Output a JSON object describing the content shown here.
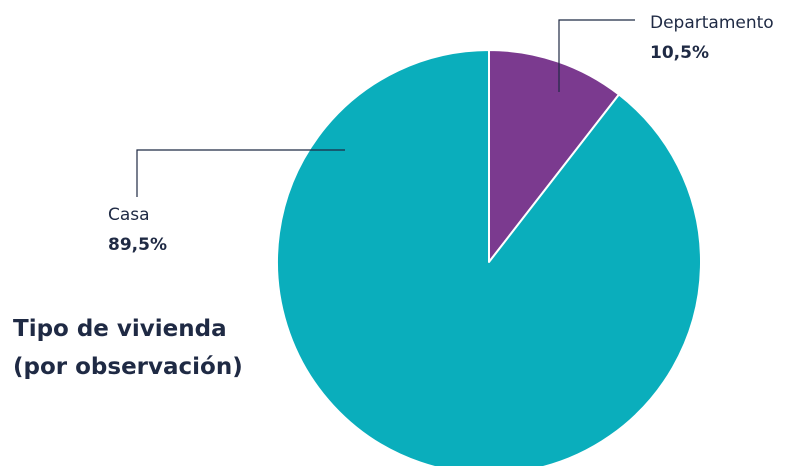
{
  "chart_data": {
    "type": "pie",
    "title": "Tipo de vivienda",
    "subtitle": "(por observación)",
    "slices": [
      {
        "name": "Departamento",
        "value": 10.5,
        "label": "10,5%",
        "color": "#7b3a8f"
      },
      {
        "name": "Casa",
        "value": 89.5,
        "label": "89,5%",
        "color": "#0aaebc"
      }
    ],
    "start_angle_deg": 0,
    "direction": "clockwise",
    "legend": "none"
  }
}
